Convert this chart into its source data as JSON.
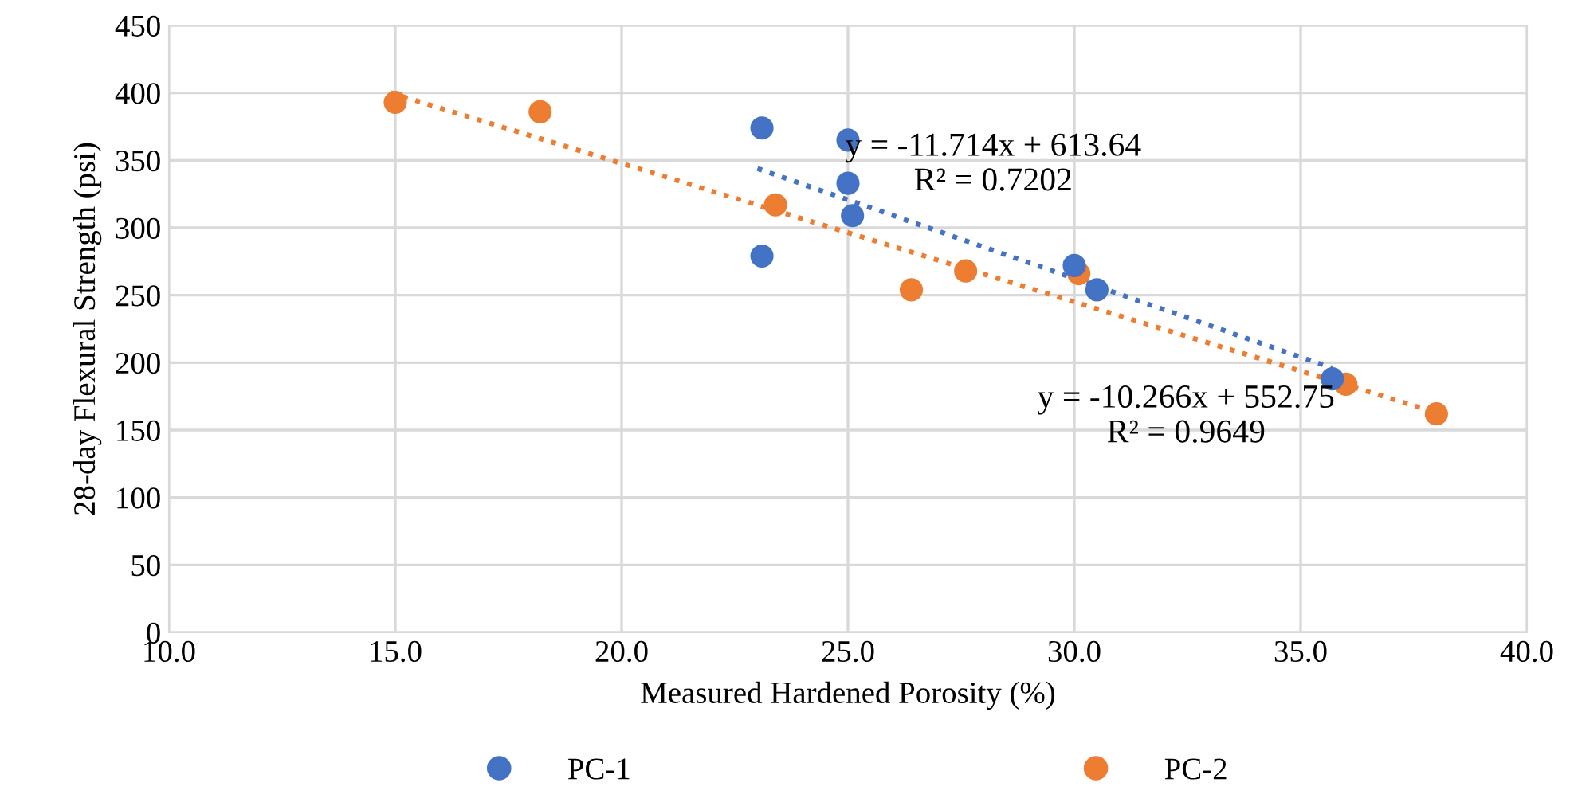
{
  "chart_data": {
    "type": "scatter",
    "xlabel": "Measured Hardened Porosity (%)",
    "ylabel": "28-day Flexural Strength (psi)",
    "xlim": [
      10,
      40
    ],
    "xticks": [
      {
        "value": 10,
        "label": "10.0"
      },
      {
        "value": 15,
        "label": "15.0"
      },
      {
        "value": 20,
        "label": "20.0"
      },
      {
        "value": 25,
        "label": "25.0"
      },
      {
        "value": 30,
        "label": "30.0"
      },
      {
        "value": 35,
        "label": "35.0"
      },
      {
        "value": 40,
        "label": "40.0"
      }
    ],
    "ylim": [
      0,
      450
    ],
    "yticks": [
      0,
      50,
      100,
      150,
      200,
      250,
      300,
      350,
      400,
      450
    ],
    "grid": true,
    "legend": "bottom",
    "series": [
      {
        "name": "PC-1",
        "color": "#4472c4",
        "marker": "circle",
        "x": [
          23.1,
          23.1,
          25.0,
          25.0,
          25.1,
          30.0,
          30.5,
          35.7
        ],
        "values": [
          374,
          279,
          365,
          333,
          309,
          272,
          254,
          188
        ]
      },
      {
        "name": "PC-2",
        "color": "#ed7d31",
        "marker": "circle",
        "x": [
          15.0,
          18.2,
          23.4,
          26.4,
          27.6,
          30.1,
          36.0,
          38.0
        ],
        "values": [
          393,
          386,
          317,
          254,
          268,
          266,
          184,
          162
        ]
      },
      {
        "type": "line",
        "line_style": "dotted",
        "marker": "none",
        "color": "#4472c4",
        "x": [
          23.0,
          35.7
        ],
        "values": [
          344,
          196
        ]
      },
      {
        "type": "line",
        "line_style": "dotted",
        "marker": "none",
        "color": "#ed7d31",
        "x": [
          14.9,
          38.0
        ],
        "values": [
          400,
          163
        ]
      }
    ],
    "annotations": [
      "y = -11.714x + 613.64\nR² = 0.7202",
      "y = -10.266x + 552.75\nR² = 0.9649"
    ]
  }
}
